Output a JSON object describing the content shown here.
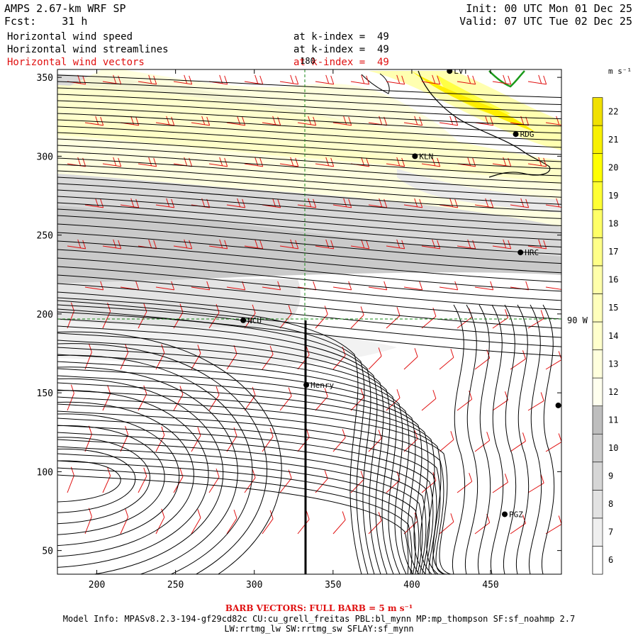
{
  "header": {
    "model": "AMPS 2.67-km WRF SP",
    "fcst_label": "Fcst:",
    "fcst_value": "31 h",
    "init": "Init: 00 UTC Mon 01 Dec 25",
    "valid": "Valid: 07 UTC Tue 02 Dec 25",
    "fields": [
      {
        "name": "Horizontal wind speed",
        "level": "at k-index =  49",
        "color": "#000000"
      },
      {
        "name": "Horizontal wind streamlines",
        "level": "at k-index =  49",
        "color": "#000000"
      },
      {
        "name": "Horizontal wind vectors",
        "level": "at k-index =  49",
        "color": "#e01010"
      }
    ]
  },
  "map": {
    "x_ticks": [
      "200",
      "250",
      "300",
      "350",
      "400",
      "450"
    ],
    "x_tick_values": [
      200,
      250,
      300,
      350,
      400,
      450
    ],
    "y_ticks": [
      "50",
      "100",
      "150",
      "200",
      "250",
      "300",
      "350"
    ],
    "y_tick_values": [
      50,
      100,
      150,
      200,
      250,
      300,
      350
    ],
    "x_range": [
      175,
      495
    ],
    "y_range": [
      35,
      355
    ],
    "meridian_label": "180",
    "meridian_x": 333,
    "parallel_label": "90 W",
    "parallel_y": 196,
    "stations": [
      {
        "name": "LVT",
        "x": 424,
        "y": 354
      },
      {
        "name": "RDG",
        "x": 466,
        "y": 314
      },
      {
        "name": "KLN",
        "x": 402,
        "y": 300
      },
      {
        "name": "HRC",
        "x": 469,
        "y": 239
      },
      {
        "name": "NCU",
        "x": 293,
        "y": 196
      },
      {
        "name": "Henry",
        "x": 333,
        "y": 155
      },
      {
        "name": "PGZ",
        "x": 459,
        "y": 73
      },
      {
        "name": "",
        "x": 493,
        "y": 142
      }
    ]
  },
  "colorbar": {
    "unit": "m s⁻¹",
    "levels": [
      "6",
      "7",
      "8",
      "9",
      "10",
      "11",
      "12",
      "13",
      "14",
      "15",
      "16",
      "17",
      "18",
      "19",
      "20",
      "21",
      "22"
    ],
    "colors": [
      "#ffffff",
      "#efefef",
      "#e2e2e2",
      "#d6d6d6",
      "#cacaca",
      "#bebebe",
      "#ffffee",
      "#ffffdd",
      "#ffffcc",
      "#ffffbb",
      "#ffffaa",
      "#ffff88",
      "#ffff66",
      "#ffff33",
      "#ffff00",
      "#f8f000",
      "#f0e000"
    ]
  },
  "footer": {
    "barb_note": "BARB VECTORS:  FULL BARB = 5 m s⁻¹",
    "model_info": "Model Info: MPASv8.2.3-194-gf29cd82c CU:cu_grell_freitas PBL:bl_mynn MP:mp_thompson SF:sf_noahmp 2.7",
    "model_info2": "LW:rrtmg_lw SW:rrtmg_sw SFLAY:sf_mynn"
  }
}
